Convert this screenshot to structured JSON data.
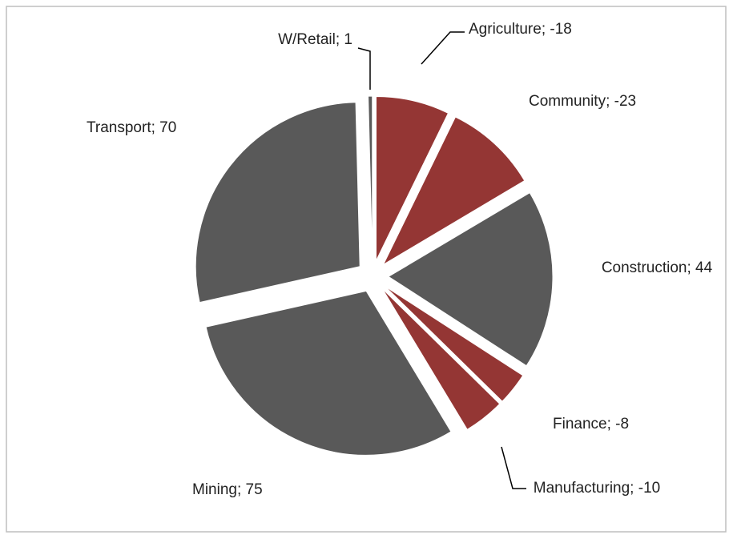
{
  "chart_data": {
    "type": "pie",
    "values": [
      -18,
      -23,
      44,
      -8,
      -10,
      75,
      70,
      1
    ],
    "value_labels": [
      "Agriculture; -18",
      "Community; -23",
      "Construction; 44",
      "Finance; -8",
      "Manufacturing; -10",
      "Mining; 75",
      "Transport; 70",
      "W/Retail; 1"
    ],
    "colors": [
      "#943634",
      "#943634",
      "#595959",
      "#943634",
      "#943634",
      "#595959",
      "#595959",
      "#595959"
    ]
  }
}
